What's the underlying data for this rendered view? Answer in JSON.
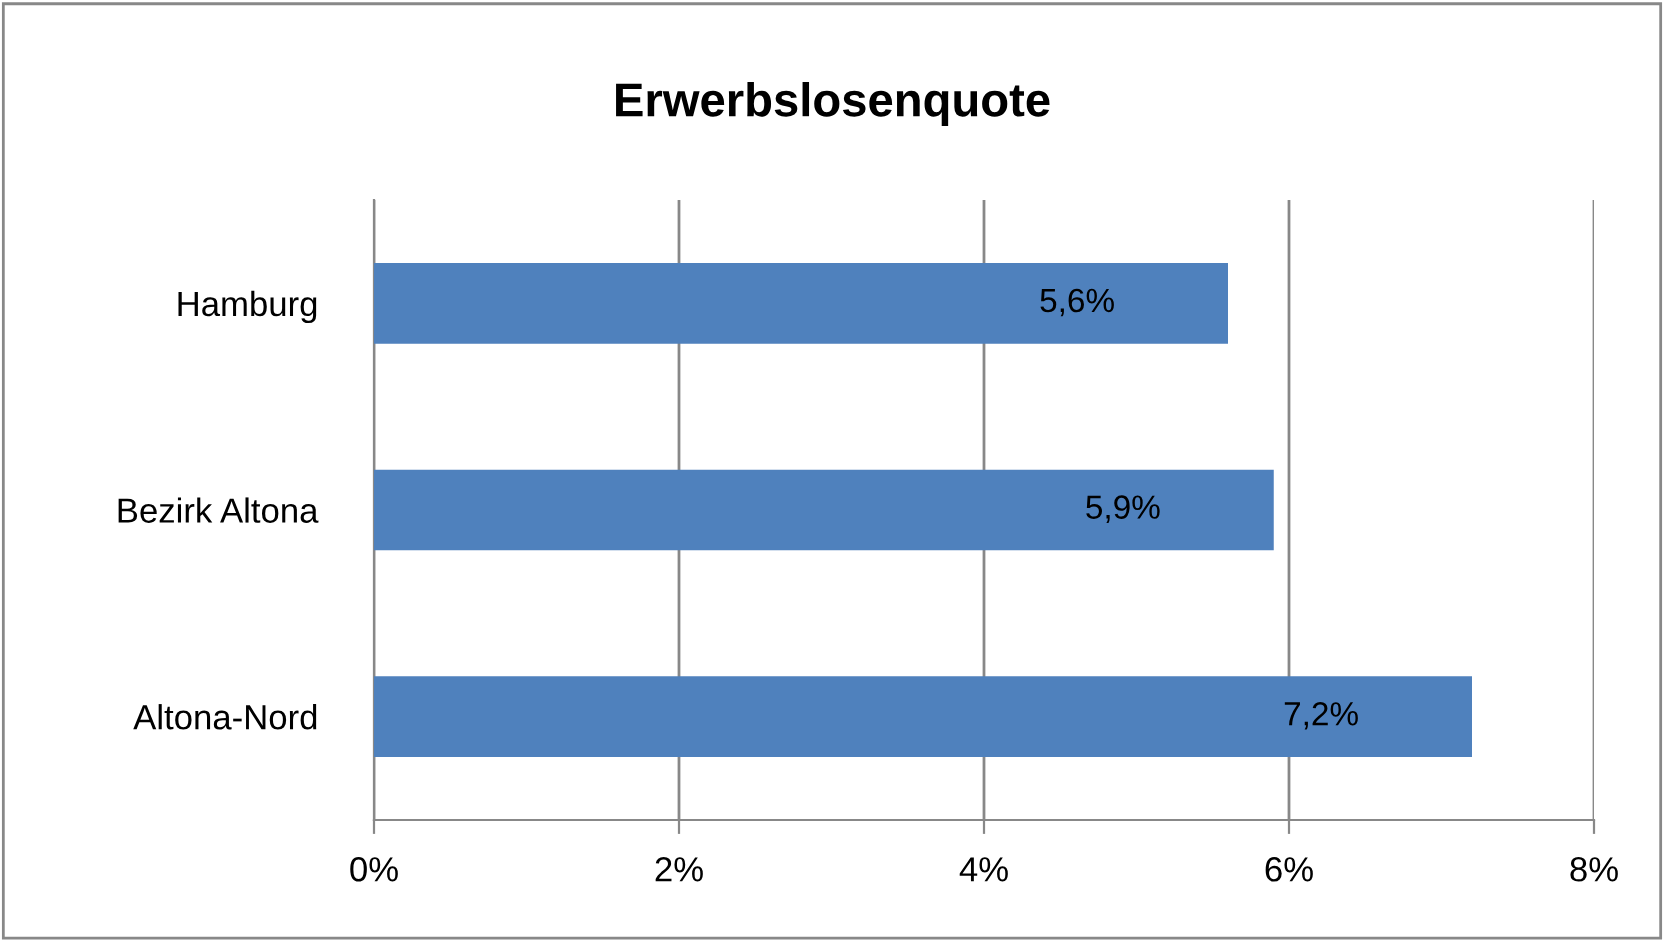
{
  "chart_data": {
    "type": "bar",
    "orientation": "horizontal",
    "title": "Erwerbslosenquote",
    "categories": [
      "Hamburg",
      "Bezirk Altona",
      "Altona-Nord"
    ],
    "values": [
      5.6,
      5.9,
      7.2
    ],
    "color": "#4f81bd",
    "value_labels": [
      "5,6%",
      "5,9%",
      "7,2%"
    ],
    "xlim": [
      0,
      8
    ],
    "xticks": [
      {
        "value": 0,
        "label": "0%"
      },
      {
        "value": 2,
        "label": "2%"
      },
      {
        "value": 4,
        "label": "4%"
      },
      {
        "value": 6,
        "label": "6%"
      },
      {
        "value": 8,
        "label": "8%"
      }
    ],
    "grid": "x",
    "legend": false
  }
}
